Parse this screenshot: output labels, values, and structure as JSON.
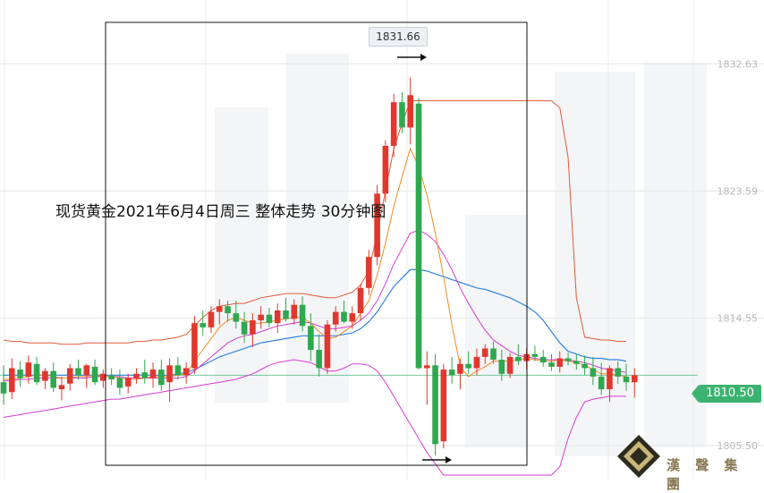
{
  "title": "现货黄金2021年6月4日周三 整体走势  30分钟图",
  "brand": {
    "name": "漢 聲 集 團"
  },
  "callouts": {
    "high_value": "1831.66",
    "current_price": "1810.50"
  },
  "colors": {
    "up": "#e0382e",
    "down": "#2fa84f",
    "bollinger": "#e05a3a",
    "ma_short": "#f08a24",
    "ma_mid": "#d63bd6",
    "ma_long": "#2f84e0",
    "price_line": "#3cb371"
  },
  "chart_data": {
    "type": "candlestick",
    "timeframe": "30分钟",
    "y_ticks": [
      "1832.63",
      "1823.59",
      "1814.55",
      "1805.50"
    ],
    "ylim": [
      1803.4,
      1834.3
    ],
    "current_price": 1810.5,
    "high_marker": 1831.66,
    "candles": [
      {
        "o": 1810.0,
        "h": 1811.2,
        "l": 1808.4,
        "c": 1809.2
      },
      {
        "o": 1809.3,
        "h": 1811.7,
        "l": 1808.8,
        "c": 1811.0
      },
      {
        "o": 1810.9,
        "h": 1811.5,
        "l": 1809.7,
        "c": 1810.3
      },
      {
        "o": 1810.4,
        "h": 1811.9,
        "l": 1809.9,
        "c": 1811.4
      },
      {
        "o": 1811.3,
        "h": 1811.8,
        "l": 1809.8,
        "c": 1810.0
      },
      {
        "o": 1810.1,
        "h": 1811.0,
        "l": 1809.5,
        "c": 1810.8
      },
      {
        "o": 1810.8,
        "h": 1811.4,
        "l": 1809.3,
        "c": 1809.6
      },
      {
        "o": 1809.5,
        "h": 1810.4,
        "l": 1808.7,
        "c": 1809.8
      },
      {
        "o": 1809.9,
        "h": 1811.3,
        "l": 1809.4,
        "c": 1811.0
      },
      {
        "o": 1811.0,
        "h": 1811.6,
        "l": 1810.2,
        "c": 1810.5
      },
      {
        "o": 1810.5,
        "h": 1811.3,
        "l": 1809.6,
        "c": 1811.2
      },
      {
        "o": 1811.1,
        "h": 1811.6,
        "l": 1809.8,
        "c": 1810.0
      },
      {
        "o": 1810.1,
        "h": 1810.9,
        "l": 1809.6,
        "c": 1810.6
      },
      {
        "o": 1810.5,
        "h": 1811.0,
        "l": 1809.8,
        "c": 1810.2
      },
      {
        "o": 1810.3,
        "h": 1810.9,
        "l": 1809.1,
        "c": 1809.6
      },
      {
        "o": 1809.7,
        "h": 1810.6,
        "l": 1809.2,
        "c": 1810.3
      },
      {
        "o": 1810.3,
        "h": 1811.0,
        "l": 1809.9,
        "c": 1810.6
      },
      {
        "o": 1810.7,
        "h": 1811.6,
        "l": 1809.9,
        "c": 1810.3
      },
      {
        "o": 1810.3,
        "h": 1811.4,
        "l": 1809.6,
        "c": 1810.9
      },
      {
        "o": 1810.9,
        "h": 1811.6,
        "l": 1809.4,
        "c": 1809.8
      },
      {
        "o": 1810.0,
        "h": 1811.7,
        "l": 1808.6,
        "c": 1811.2
      },
      {
        "o": 1811.2,
        "h": 1811.8,
        "l": 1810.2,
        "c": 1810.5
      },
      {
        "o": 1810.5,
        "h": 1811.4,
        "l": 1809.9,
        "c": 1811.0
      },
      {
        "o": 1811.0,
        "h": 1814.7,
        "l": 1810.6,
        "c": 1814.2
      },
      {
        "o": 1814.2,
        "h": 1815.1,
        "l": 1813.3,
        "c": 1813.9
      },
      {
        "o": 1813.9,
        "h": 1815.4,
        "l": 1813.5,
        "c": 1815.0
      },
      {
        "o": 1815.0,
        "h": 1815.9,
        "l": 1814.1,
        "c": 1815.4
      },
      {
        "o": 1815.4,
        "h": 1815.8,
        "l": 1814.3,
        "c": 1814.9
      },
      {
        "o": 1814.9,
        "h": 1815.8,
        "l": 1813.8,
        "c": 1814.3
      },
      {
        "o": 1814.3,
        "h": 1815.0,
        "l": 1812.8,
        "c": 1813.4
      },
      {
        "o": 1813.4,
        "h": 1814.9,
        "l": 1812.5,
        "c": 1814.4
      },
      {
        "o": 1814.4,
        "h": 1815.4,
        "l": 1813.8,
        "c": 1814.8
      },
      {
        "o": 1814.8,
        "h": 1815.3,
        "l": 1813.9,
        "c": 1814.2
      },
      {
        "o": 1814.2,
        "h": 1815.6,
        "l": 1813.5,
        "c": 1815.1
      },
      {
        "o": 1815.1,
        "h": 1816.0,
        "l": 1814.3,
        "c": 1814.5
      },
      {
        "o": 1814.5,
        "h": 1815.9,
        "l": 1814.1,
        "c": 1815.5
      },
      {
        "o": 1815.5,
        "h": 1816.1,
        "l": 1813.6,
        "c": 1814.0
      },
      {
        "o": 1814.0,
        "h": 1814.9,
        "l": 1811.5,
        "c": 1812.3
      },
      {
        "o": 1812.3,
        "h": 1813.4,
        "l": 1810.4,
        "c": 1811.0
      },
      {
        "o": 1811.0,
        "h": 1814.4,
        "l": 1810.6,
        "c": 1814.1
      },
      {
        "o": 1814.1,
        "h": 1815.4,
        "l": 1813.6,
        "c": 1815.0
      },
      {
        "o": 1815.0,
        "h": 1815.8,
        "l": 1814.2,
        "c": 1814.3
      },
      {
        "o": 1814.3,
        "h": 1815.4,
        "l": 1813.8,
        "c": 1814.9
      },
      {
        "o": 1814.9,
        "h": 1817.0,
        "l": 1814.4,
        "c": 1816.7
      },
      {
        "o": 1816.7,
        "h": 1819.4,
        "l": 1816.2,
        "c": 1818.9
      },
      {
        "o": 1818.9,
        "h": 1824.0,
        "l": 1818.3,
        "c": 1823.4
      },
      {
        "o": 1823.4,
        "h": 1827.2,
        "l": 1822.8,
        "c": 1826.8
      },
      {
        "o": 1826.8,
        "h": 1830.5,
        "l": 1826.0,
        "c": 1829.9
      },
      {
        "o": 1829.9,
        "h": 1830.6,
        "l": 1827.7,
        "c": 1828.1
      },
      {
        "o": 1828.1,
        "h": 1831.66,
        "l": 1826.9,
        "c": 1830.4
      },
      {
        "o": 1829.8,
        "h": 1830.2,
        "l": 1810.9,
        "c": 1811.0
      },
      {
        "o": 1811.0,
        "h": 1812.2,
        "l": 1808.4,
        "c": 1811.2
      },
      {
        "o": 1811.2,
        "h": 1812.0,
        "l": 1804.8,
        "c": 1805.6
      },
      {
        "o": 1805.8,
        "h": 1811.3,
        "l": 1805.3,
        "c": 1810.9
      },
      {
        "o": 1810.9,
        "h": 1811.8,
        "l": 1809.9,
        "c": 1810.5
      },
      {
        "o": 1810.6,
        "h": 1811.7,
        "l": 1809.5,
        "c": 1811.3
      },
      {
        "o": 1811.3,
        "h": 1812.2,
        "l": 1810.6,
        "c": 1811.0
      },
      {
        "o": 1811.0,
        "h": 1812.4,
        "l": 1810.5,
        "c": 1811.8
      },
      {
        "o": 1811.8,
        "h": 1812.7,
        "l": 1811.3,
        "c": 1812.4
      },
      {
        "o": 1812.4,
        "h": 1812.9,
        "l": 1811.3,
        "c": 1811.6
      },
      {
        "o": 1811.6,
        "h": 1812.3,
        "l": 1810.1,
        "c": 1810.6
      },
      {
        "o": 1810.6,
        "h": 1812.1,
        "l": 1810.3,
        "c": 1811.8
      },
      {
        "o": 1811.8,
        "h": 1812.7,
        "l": 1811.2,
        "c": 1811.5
      },
      {
        "o": 1811.5,
        "h": 1812.4,
        "l": 1810.9,
        "c": 1812.0
      },
      {
        "o": 1812.0,
        "h": 1812.6,
        "l": 1811.5,
        "c": 1811.8
      },
      {
        "o": 1811.8,
        "h": 1812.3,
        "l": 1811.1,
        "c": 1811.4
      },
      {
        "o": 1811.4,
        "h": 1812.0,
        "l": 1810.8,
        "c": 1811.1
      },
      {
        "o": 1811.1,
        "h": 1812.2,
        "l": 1810.7,
        "c": 1811.7
      },
      {
        "o": 1811.7,
        "h": 1812.1,
        "l": 1811.2,
        "c": 1811.5
      },
      {
        "o": 1811.5,
        "h": 1812.0,
        "l": 1810.9,
        "c": 1811.3
      },
      {
        "o": 1811.3,
        "h": 1811.9,
        "l": 1810.5,
        "c": 1811.0
      },
      {
        "o": 1811.0,
        "h": 1811.8,
        "l": 1809.8,
        "c": 1810.4
      },
      {
        "o": 1810.4,
        "h": 1811.4,
        "l": 1809.1,
        "c": 1809.5
      },
      {
        "o": 1809.5,
        "h": 1811.2,
        "l": 1808.6,
        "c": 1811.0
      },
      {
        "o": 1811.0,
        "h": 1811.5,
        "l": 1809.9,
        "c": 1810.4
      },
      {
        "o": 1810.4,
        "h": 1811.3,
        "l": 1809.4,
        "c": 1810.0
      },
      {
        "o": 1810.0,
        "h": 1811.0,
        "l": 1808.9,
        "c": 1810.5
      }
    ],
    "bands_upper": [
      1813.0,
      1812.9,
      1812.9,
      1812.8,
      1812.8,
      1812.8,
      1812.8,
      1812.7,
      1812.7,
      1812.7,
      1812.8,
      1812.8,
      1812.8,
      1812.8,
      1812.8,
      1812.8,
      1812.9,
      1812.9,
      1813.0,
      1813.0,
      1813.1,
      1813.2,
      1813.4,
      1814.0,
      1814.6,
      1815.1,
      1815.4,
      1815.5,
      1815.6,
      1815.6,
      1815.8,
      1816.0,
      1816.1,
      1816.2,
      1816.3,
      1816.3,
      1816.3,
      1816.2,
      1816.1,
      1816.0,
      1816.0,
      1816.2,
      1816.4,
      1816.9,
      1817.9,
      1820.6,
      1823.6,
      1826.6,
      1828.4,
      1830.0,
      1830.0,
      1830.0,
      1830.0,
      1830.0,
      1830.0,
      1830.0,
      1830.0,
      1830.0,
      1830.0,
      1830.0,
      1830.0,
      1830.0,
      1830.0,
      1830.0,
      1830.0,
      1830.0,
      1830.0,
      1829.5,
      1826.0,
      1816.0,
      1813.2,
      1813.1,
      1813.0,
      1813.0,
      1812.9,
      1812.9
    ],
    "bands_lower": [
      1807.5,
      1807.6,
      1807.7,
      1807.8,
      1807.9,
      1808.0,
      1808.1,
      1808.2,
      1808.3,
      1808.4,
      1808.5,
      1808.6,
      1808.7,
      1808.8,
      1808.8,
      1808.9,
      1809.0,
      1809.1,
      1809.2,
      1809.3,
      1809.4,
      1809.5,
      1809.6,
      1809.7,
      1809.8,
      1809.9,
      1810.0,
      1810.1,
      1810.2,
      1810.4,
      1810.6,
      1810.9,
      1811.2,
      1811.4,
      1811.5,
      1811.6,
      1811.5,
      1811.4,
      1811.1,
      1810.8,
      1810.8,
      1811.0,
      1811.3,
      1811.3,
      1811.2,
      1810.8,
      1810.0,
      1809.0,
      1808.0,
      1807.0,
      1806.0,
      1805.0,
      1804.2,
      1803.4,
      1803.4,
      1803.4,
      1803.4,
      1803.4,
      1803.4,
      1803.4,
      1803.4,
      1803.4,
      1803.4,
      1803.4,
      1803.4,
      1803.4,
      1803.4,
      1804.0,
      1806.0,
      1807.5,
      1808.6,
      1808.8,
      1808.9,
      1809.0,
      1809.0,
      1809.0
    ],
    "ma_short": [
      1810.2,
      1810.2,
      1810.3,
      1810.4,
      1810.5,
      1810.5,
      1810.4,
      1810.3,
      1810.3,
      1810.4,
      1810.4,
      1810.5,
      1810.4,
      1810.4,
      1810.3,
      1810.2,
      1810.2,
      1810.3,
      1810.4,
      1810.4,
      1810.4,
      1810.5,
      1810.6,
      1811.5,
      1812.3,
      1813.1,
      1813.9,
      1814.4,
      1814.6,
      1814.4,
      1814.2,
      1814.2,
      1814.3,
      1814.4,
      1814.5,
      1814.6,
      1814.6,
      1814.2,
      1813.6,
      1813.1,
      1813.2,
      1813.6,
      1814.0,
      1814.9,
      1815.8,
      1817.6,
      1819.9,
      1822.5,
      1824.6,
      1826.6,
      1825.3,
      1823.3,
      1820.6,
      1817.5,
      1814.1,
      1811.1,
      1810.4,
      1810.8,
      1811.1,
      1811.5,
      1811.5,
      1811.5,
      1811.6,
      1811.7,
      1811.6,
      1811.5,
      1811.5,
      1811.6,
      1811.5,
      1811.4,
      1811.2,
      1810.9,
      1810.6,
      1810.6,
      1810.5,
      1810.4
    ],
    "ma_mid": [
      1810.1,
      1810.1,
      1810.2,
      1810.2,
      1810.3,
      1810.3,
      1810.3,
      1810.3,
      1810.3,
      1810.3,
      1810.3,
      1810.4,
      1810.4,
      1810.4,
      1810.4,
      1810.3,
      1810.3,
      1810.3,
      1810.3,
      1810.3,
      1810.3,
      1810.3,
      1810.4,
      1810.8,
      1811.3,
      1811.8,
      1812.3,
      1812.8,
      1813.1,
      1813.3,
      1813.4,
      1813.6,
      1813.8,
      1814.0,
      1814.1,
      1814.2,
      1814.3,
      1814.2,
      1814.0,
      1813.8,
      1813.8,
      1813.9,
      1814.0,
      1814.4,
      1814.9,
      1815.8,
      1817.0,
      1818.4,
      1819.5,
      1820.6,
      1820.8,
      1820.5,
      1820.0,
      1819.1,
      1818.0,
      1816.7,
      1815.6,
      1814.6,
      1813.7,
      1813.0,
      1812.6,
      1812.2,
      1811.9,
      1811.8,
      1811.7,
      1811.6,
      1811.6,
      1811.6,
      1811.6,
      1811.5,
      1811.4,
      1811.2,
      1811.0,
      1810.9,
      1810.8,
      1810.7
    ],
    "ma_long": [
      1810.5,
      1810.5,
      1810.5,
      1810.5,
      1810.5,
      1810.5,
      1810.5,
      1810.5,
      1810.5,
      1810.5,
      1810.5,
      1810.5,
      1810.5,
      1810.5,
      1810.5,
      1810.5,
      1810.5,
      1810.5,
      1810.5,
      1810.5,
      1810.5,
      1810.6,
      1810.7,
      1810.9,
      1811.2,
      1811.5,
      1811.8,
      1812.0,
      1812.2,
      1812.4,
      1812.6,
      1812.8,
      1812.9,
      1813.0,
      1813.1,
      1813.2,
      1813.3,
      1813.3,
      1813.3,
      1813.3,
      1813.3,
      1813.4,
      1813.5,
      1813.8,
      1814.3,
      1815.0,
      1815.9,
      1816.8,
      1817.4,
      1818.0,
      1818.0,
      1817.9,
      1817.7,
      1817.5,
      1817.3,
      1817.1,
      1816.9,
      1816.7,
      1816.6,
      1816.4,
      1816.2,
      1816.0,
      1815.7,
      1815.4,
      1815.0,
      1814.4,
      1813.6,
      1812.8,
      1812.2,
      1812.0,
      1811.8,
      1811.7,
      1811.7,
      1811.6,
      1811.6,
      1811.5
    ]
  }
}
